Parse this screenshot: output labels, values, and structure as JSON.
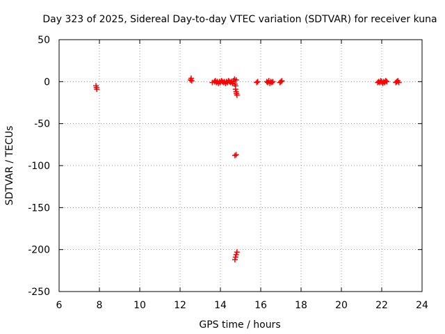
{
  "chart_data": {
    "type": "scatter",
    "title": "Day 323 of 2025, Sidereal Day-to-day VTEC variation (SDTVAR) for receiver kuna",
    "xlabel": "GPS time / hours",
    "ylabel": "SDTVAR / TECUs",
    "xlim": [
      6,
      24
    ],
    "ylim": [
      -250,
      50
    ],
    "xticks": [
      6,
      8,
      10,
      12,
      14,
      16,
      18,
      20,
      22,
      24
    ],
    "yticks": [
      50,
      0,
      -50,
      -100,
      -150,
      -200,
      -250
    ],
    "grid": true,
    "marker": "plus",
    "color": "#ff0000",
    "series": [
      {
        "name": "SDTVAR",
        "points": [
          [
            7.83,
            -5
          ],
          [
            7.85,
            -7
          ],
          [
            7.87,
            -9
          ],
          [
            12.52,
            2
          ],
          [
            12.55,
            4
          ],
          [
            12.58,
            1
          ],
          [
            13.6,
            -1
          ],
          [
            13.7,
            0
          ],
          [
            13.75,
            1
          ],
          [
            13.8,
            -1
          ],
          [
            13.85,
            0
          ],
          [
            13.9,
            -2
          ],
          [
            13.95,
            0
          ],
          [
            14.0,
            -1
          ],
          [
            14.05,
            1
          ],
          [
            14.1,
            0
          ],
          [
            14.15,
            -1
          ],
          [
            14.2,
            0
          ],
          [
            14.25,
            -2
          ],
          [
            14.3,
            0
          ],
          [
            14.35,
            -1
          ],
          [
            14.4,
            1
          ],
          [
            14.45,
            0
          ],
          [
            14.5,
            -1
          ],
          [
            14.55,
            0
          ],
          [
            14.6,
            -2
          ],
          [
            14.65,
            1
          ],
          [
            14.7,
            3
          ],
          [
            14.72,
            -3
          ],
          [
            14.75,
            -5
          ],
          [
            14.75,
            -9
          ],
          [
            14.78,
            -12
          ],
          [
            14.8,
            -14
          ],
          [
            14.82,
            -16
          ],
          [
            14.78,
            2
          ],
          [
            14.72,
            -88
          ],
          [
            14.78,
            -87
          ],
          [
            14.72,
            -212
          ],
          [
            14.75,
            -209
          ],
          [
            14.78,
            -206
          ],
          [
            14.82,
            -203
          ],
          [
            15.8,
            -1
          ],
          [
            15.85,
            0
          ],
          [
            16.3,
            0
          ],
          [
            16.35,
            -1
          ],
          [
            16.4,
            1
          ],
          [
            16.45,
            -2
          ],
          [
            16.5,
            0
          ],
          [
            16.55,
            -1
          ],
          [
            16.6,
            0
          ],
          [
            16.95,
            -1
          ],
          [
            17.0,
            0
          ],
          [
            17.05,
            1
          ],
          [
            21.8,
            -1
          ],
          [
            21.85,
            0
          ],
          [
            21.9,
            -1
          ],
          [
            21.95,
            1
          ],
          [
            22.0,
            0
          ],
          [
            22.05,
            -2
          ],
          [
            22.1,
            0
          ],
          [
            22.15,
            -1
          ],
          [
            22.2,
            1
          ],
          [
            22.25,
            0
          ],
          [
            22.7,
            -1
          ],
          [
            22.75,
            0
          ],
          [
            22.8,
            1
          ],
          [
            22.85,
            -1
          ]
        ]
      }
    ]
  }
}
